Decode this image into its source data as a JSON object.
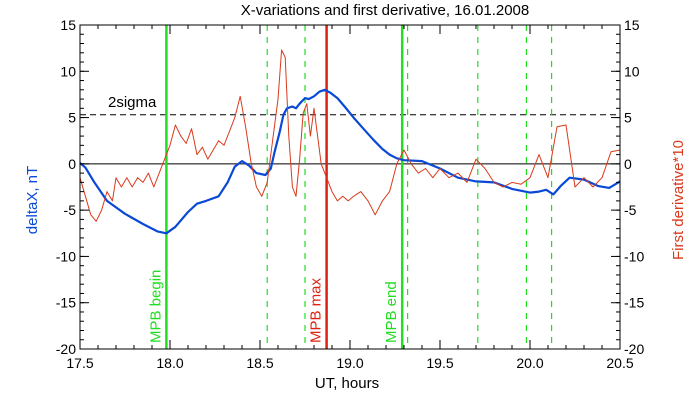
{
  "chart_data": {
    "type": "line",
    "title": "X-variations and first derivative, 16.01.2008",
    "xlabel": "UT, hours",
    "ylabel_left": "deltaX, nT",
    "ylabel_right": "First derivative*10",
    "xlim": [
      17.5,
      20.5
    ],
    "ylim": [
      -20,
      15
    ],
    "x_ticks": [
      "17.5",
      "18.0",
      "18.5",
      "19.0",
      "19.5",
      "20.0",
      "20.5"
    ],
    "y_ticks_left": [
      "-20",
      "-15",
      "-10",
      "-5",
      "0",
      "5",
      "10",
      "15"
    ],
    "y_ticks_right": [
      "-20",
      "-15",
      "-10",
      "-5",
      "0",
      "5",
      "10",
      "15"
    ],
    "sigma_level": 5.3,
    "sigma_label": "2sigma",
    "zero_line": 0,
    "colors": {
      "deltaX": "#0a49d6",
      "derivative": "#d93a1c",
      "mpb_green": "#22dd22",
      "mpb_red": "#dd2211",
      "axis": "#000000"
    },
    "event_lines": [
      {
        "x": 17.98,
        "label": "MPB begin",
        "color": "green"
      },
      {
        "x": 18.87,
        "label": "MPB max",
        "color": "red"
      },
      {
        "x": 19.29,
        "label": "MPB end",
        "color": "green"
      }
    ],
    "dashed_event_lines_x": [
      18.54,
      18.75,
      19.32,
      19.71,
      19.98,
      20.12
    ],
    "series": [
      {
        "name": "deltaX",
        "x": [
          17.5,
          17.53,
          17.58,
          17.65,
          17.75,
          17.85,
          17.93,
          17.98,
          18.03,
          18.1,
          18.15,
          18.2,
          18.27,
          18.32,
          18.36,
          18.4,
          18.44,
          18.48,
          18.53,
          18.56,
          18.58,
          18.61,
          18.63,
          18.65,
          18.68,
          18.7,
          18.72,
          18.75,
          18.77,
          18.8,
          18.83,
          18.86,
          18.89,
          18.93,
          18.97,
          19.02,
          19.07,
          19.13,
          19.18,
          19.22,
          19.26,
          19.3,
          19.4,
          19.5,
          19.6,
          19.7,
          19.8,
          19.9,
          20.0,
          20.05,
          20.09,
          20.13,
          20.17,
          20.22,
          20.3,
          20.38,
          20.44,
          20.5
        ],
        "y": [
          0.1,
          -0.4,
          -2.0,
          -4.0,
          -5.4,
          -6.5,
          -7.3,
          -7.5,
          -6.8,
          -5.2,
          -4.3,
          -4.0,
          -3.5,
          -2.0,
          -0.3,
          0.3,
          -0.2,
          -1.0,
          -1.2,
          -0.5,
          1.2,
          3.5,
          5.3,
          6.0,
          6.2,
          6.0,
          6.5,
          7.1,
          7.0,
          7.3,
          7.8,
          8.0,
          7.7,
          7.1,
          6.2,
          5.0,
          3.9,
          2.6,
          1.6,
          1.0,
          0.6,
          0.4,
          0.3,
          -0.5,
          -1.5,
          -1.9,
          -2.0,
          -2.7,
          -3.1,
          -3.0,
          -2.8,
          -3.3,
          -2.4,
          -1.5,
          -1.7,
          -2.4,
          -2.6,
          -1.9
        ]
      },
      {
        "name": "First derivative*10",
        "x": [
          17.5,
          17.53,
          17.56,
          17.59,
          17.62,
          17.65,
          17.68,
          17.7,
          17.73,
          17.76,
          17.79,
          17.82,
          17.85,
          17.88,
          17.91,
          17.94,
          17.97,
          18.0,
          18.03,
          18.06,
          18.09,
          18.12,
          18.15,
          18.18,
          18.21,
          18.24,
          18.27,
          18.3,
          18.33,
          18.36,
          18.39,
          18.42,
          18.45,
          18.48,
          18.51,
          18.54,
          18.57,
          18.6,
          18.62,
          18.64,
          18.66,
          18.68,
          18.7,
          18.72,
          18.74,
          18.76,
          18.78,
          18.8,
          18.82,
          18.84,
          18.87,
          18.9,
          18.93,
          18.96,
          18.99,
          19.02,
          19.06,
          19.1,
          19.14,
          19.18,
          19.22,
          19.26,
          19.3,
          19.34,
          19.38,
          19.42,
          19.46,
          19.5,
          19.55,
          19.6,
          19.65,
          19.7,
          19.75,
          19.8,
          19.85,
          19.9,
          19.95,
          20.0,
          20.05,
          20.1,
          20.15,
          20.2,
          20.25,
          20.3,
          20.35,
          20.4,
          20.45,
          20.5
        ],
        "y": [
          -1.5,
          -3.5,
          -5.5,
          -6.2,
          -5.0,
          -3.0,
          -4.0,
          -1.5,
          -2.5,
          -1.5,
          -2.5,
          -1.5,
          -2.0,
          -1.0,
          -2.5,
          -1.0,
          0.5,
          2.0,
          4.2,
          3.0,
          2.2,
          3.8,
          1.0,
          1.8,
          0.5,
          1.5,
          2.5,
          2.0,
          3.5,
          5.0,
          7.3,
          4.0,
          0.2,
          -2.5,
          -3.5,
          -2.0,
          2.5,
          7.0,
          12.3,
          11.5,
          3.0,
          -2.5,
          -3.5,
          0.5,
          5.5,
          6.5,
          3.0,
          6.0,
          3.0,
          0.0,
          -1.5,
          -3.0,
          -4.0,
          -3.5,
          -4.0,
          -3.5,
          -3.0,
          -4.0,
          -5.5,
          -4.0,
          -3.0,
          0.0,
          1.5,
          0.0,
          -1.0,
          -0.5,
          -1.5,
          -0.5,
          -1.5,
          -1.0,
          -2.0,
          0.5,
          -0.5,
          -2.0,
          -2.5,
          -2.0,
          -2.2,
          -1.5,
          1.0,
          -1.5,
          4.0,
          4.2,
          -2.5,
          -1.5,
          -2.5,
          -1.5,
          1.3,
          1.5
        ]
      }
    ]
  }
}
